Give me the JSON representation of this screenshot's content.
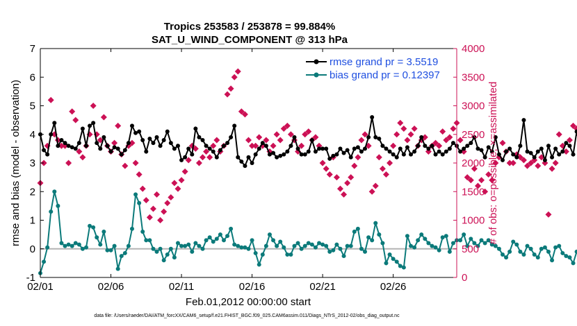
{
  "chart_data": {
    "type": "line",
    "title_line1": "Tropics 253583 / 253878 = 99.884%",
    "title_line2": "SAT_U_WIND_COMPONENT @ 313 hPa",
    "xlabel": "Feb.01,2012 00:00:00 start",
    "ylabel_left": "rmse and bias (model - observation)",
    "ylabel_right": "# of obs: o=possible; ×=assimilated",
    "footer": "data file: /Users/raeder/DAI/ATM_forcXX/CAM6_setup/f.e21.FHIST_BGC.f09_025.CAM6assim.011/Diags_NTrS_2012-02/obs_diag_output.nc",
    "x_range": [
      0,
      29.5
    ],
    "x_ticks": [
      0,
      5,
      10,
      15,
      20,
      25
    ],
    "x_tick_labels": [
      "02/01",
      "02/06",
      "02/11",
      "02/16",
      "02/21",
      "02/26"
    ],
    "ylim_left": [
      -1,
      7
    ],
    "y_ticks_left": [
      "-1",
      "0",
      "1",
      "2",
      "3",
      "4",
      "5",
      "6",
      "7"
    ],
    "ylim_right": [
      0,
      4000
    ],
    "y_ticks_right": [
      "0",
      "500",
      "1000",
      "1500",
      "2000",
      "2500",
      "3000",
      "3500",
      "4000"
    ],
    "legend": {
      "rmse_label": "rmse grand pr = 3.5519",
      "bias_label": "bias grand pr = 0.12397"
    },
    "colors": {
      "rmse": "#000000",
      "bias": "#0b7a7a",
      "obs": "#cc1155",
      "zero_line": "#b3b3b3",
      "right_axis": "#cc1155",
      "legend_text": "#1f4fe0"
    },
    "series": [
      {
        "name": "rmse",
        "values": [
          4.0,
          3.45,
          3.3,
          4.0,
          4.4,
          3.6,
          3.8,
          3.7,
          3.6,
          3.55,
          3.5,
          3.7,
          4.2,
          3.6,
          4.3,
          4.4,
          3.7,
          3.5,
          3.9,
          3.6,
          3.4,
          3.55,
          3.5,
          3.3,
          3.45,
          3.7,
          4.3,
          4.05,
          4.1,
          3.8,
          3.4,
          3.85,
          3.7,
          3.9,
          3.6,
          3.8,
          4.1,
          3.7,
          3.5,
          3.6,
          3.1,
          3.2,
          3.5,
          3.3,
          4.2,
          3.9,
          3.8,
          3.6,
          3.5,
          3.4,
          3.2,
          3.45,
          3.6,
          3.7,
          3.9,
          4.3,
          3.2,
          3.05,
          2.9,
          3.2,
          3.0,
          3.3,
          3.5,
          3.7,
          3.6,
          3.3,
          3.35,
          3.2,
          3.25,
          3.3,
          3.4,
          3.6,
          3.9,
          3.5,
          3.3,
          3.3,
          3.4,
          3.8,
          3.4,
          3.5,
          3.5,
          3.5,
          3.15,
          3.25,
          3.3,
          3.5,
          3.35,
          3.45,
          3.2,
          3.5,
          3.55,
          3.4,
          3.5,
          3.9,
          4.6,
          3.9,
          3.85,
          3.6,
          3.5,
          3.4,
          3.3,
          3.2,
          3.5,
          3.3,
          3.55,
          3.3,
          3.4,
          3.6,
          3.9,
          3.6,
          3.5,
          3.6,
          3.3,
          3.4,
          3.3,
          3.4,
          3.5,
          3.7,
          3.6,
          3.4,
          3.5,
          3.6,
          3.7,
          3.9,
          3.5,
          3.45,
          3.2,
          3.55,
          3.4,
          3.9,
          3.3,
          3.1,
          3.4,
          3.5,
          3.3,
          3.2,
          3.6,
          4.5,
          3.4,
          3.35,
          3.2,
          3.4,
          3.5,
          3.1,
          3.6,
          3.2,
          3.5,
          3.3,
          3.4,
          3.7,
          3.6,
          3.3,
          4.1,
          3.5,
          3.4,
          3.8,
          3.6,
          3.55,
          3.5,
          3.55,
          3.5,
          3.4,
          3.65,
          3.4,
          3.3,
          3.5,
          3.3,
          3.7,
          3.4,
          3.45,
          3.6,
          3.3,
          3.5,
          3.65,
          3.4,
          3.5,
          3.3,
          3.5,
          3.6,
          3.5,
          3.4,
          3.2,
          3.3,
          3.1,
          3.35,
          3.7
        ]
      },
      {
        "name": "bias",
        "values": [
          -0.85,
          -0.45,
          0.05,
          1.3,
          2.0,
          1.5,
          0.2,
          0.1,
          0.15,
          0.1,
          0.2,
          0.15,
          0.0,
          0.05,
          0.8,
          0.75,
          0.4,
          0.15,
          0.6,
          -0.05,
          -0.05,
          0.1,
          -0.7,
          -0.25,
          -0.15,
          0.1,
          0.7,
          1.9,
          1.6,
          0.6,
          0.3,
          0.3,
          0.0,
          -0.1,
          0.0,
          -0.4,
          -0.2,
          0.0,
          -0.3,
          0.2,
          0.1,
          0.1,
          0.15,
          -0.1,
          0.2,
          0.1,
          0.0,
          0.3,
          0.4,
          0.25,
          0.35,
          0.5,
          0.3,
          0.45,
          0.7,
          0.15,
          0.1,
          0.05,
          0.05,
          0.0,
          0.3,
          -0.15,
          -0.55,
          -0.2,
          0.1,
          0.5,
          0.3,
          0.1,
          0.25,
          0.05,
          -0.2,
          -0.2,
          0.1,
          0.2,
          0.0,
          0.1,
          0.2,
          0.15,
          0.05,
          0.2,
          0.15,
          0.1,
          -0.1,
          -0.05,
          0.15,
          0.0,
          -0.25,
          0.1,
          0.1,
          0.6,
          0.7,
          0.0,
          -0.1,
          0.4,
          0.3,
          0.9,
          0.5,
          0.2,
          -0.5,
          -0.2,
          -0.35,
          -0.45,
          -0.6,
          -0.65,
          0.45,
          0.1,
          0.05,
          0.3,
          0.5,
          0.35,
          0.2,
          0.1,
          0.05,
          -0.05,
          0.4,
          0.45,
          -0.1,
          0.2,
          0.3,
          0.3,
          0.5,
          0.1,
          0.35,
          0.2,
          0.1,
          0.3,
          0.2,
          0.3,
          0.15,
          0.1,
          0.0,
          -0.2,
          -0.3,
          -0.1,
          0.25,
          0.15,
          -0.1,
          -0.2,
          0.1,
          0.0,
          -0.2,
          -0.3,
          0.0,
          0.05,
          -0.1,
          -0.4,
          0.05,
          0.1,
          -0.15,
          -0.25,
          -0.3,
          -0.5,
          -0.1,
          -0.2,
          -0.6,
          0.1,
          0.05,
          0.2,
          0.15,
          -0.1,
          -0.1,
          -0.3,
          0.0,
          0.05,
          0.2,
          0.15,
          0.3,
          0.0,
          0.05,
          0.05,
          0.1,
          0.2,
          0.05,
          0.2,
          0.4,
          0.35,
          0.15,
          0.3,
          0.2,
          -0.1,
          -0.2,
          0.0,
          -0.2,
          0.15,
          0.05,
          0.4
        ]
      },
      {
        "name": "obs_count",
        "values": [
          1650,
          2000,
          2300,
          3100,
          2500,
          2400,
          2300,
          2300,
          2000,
          2900,
          2750,
          2200,
          2100,
          2300,
          2500,
          3000,
          2500,
          2400,
          2800,
          2300,
          2200,
          2350,
          2650,
          2150,
          1950,
          2300,
          2350,
          2000,
          1800,
          1550,
          1350,
          1050,
          1200,
          1450,
          1000,
          1150,
          1300,
          1400,
          1650,
          1550,
          1700,
          1850,
          2050,
          2300,
          2250,
          2000,
          2100,
          2200,
          2100,
          2300,
          2400,
          2200,
          2300,
          3200,
          3300,
          3500,
          3600,
          2900,
          2850,
          2400,
          2300,
          2300,
          2450,
          2300,
          2400,
          2200,
          2300,
          2500,
          2400,
          2600,
          2650,
          2500,
          2400,
          2200,
          2300,
          2500,
          2550,
          2400,
          2450,
          2300,
          2000,
          1900,
          1800,
          2100,
          1750,
          1550,
          1450,
          1650,
          1750,
          1950,
          2100,
          2400,
          2500,
          2300,
          1500,
          1600,
          2100,
          1900,
          1800,
          2000,
          2300,
          2500,
          2700,
          2600,
          2400,
          2500,
          2600,
          2300,
          2400,
          2450,
          2200,
          2300,
          2350,
          2300,
          2550,
          2400,
          2450,
          2600,
          2700,
          2400,
          2200,
          1750,
          1700,
          1900,
          1600,
          1700,
          1500,
          1800,
          1700,
          2000,
          2100,
          2350,
          2200,
          2000,
          2000,
          2150,
          2100,
          2050,
          1950,
          2000,
          2050,
          1950,
          2100,
          2000,
          1100,
          1900,
          2000,
          2500,
          2300,
          2200,
          2400,
          2650,
          2600,
          2450,
          1900,
          2000,
          1800,
          1900,
          2100,
          2000,
          1900,
          2200,
          2150,
          2300,
          2100,
          2200,
          2050,
          2200,
          2300,
          2200,
          2600,
          2350,
          2500,
          2000,
          2550,
          2400,
          2950,
          2300,
          2500,
          2200,
          2100,
          2050,
          1900,
          2000,
          1850,
          0
        ]
      }
    ]
  }
}
